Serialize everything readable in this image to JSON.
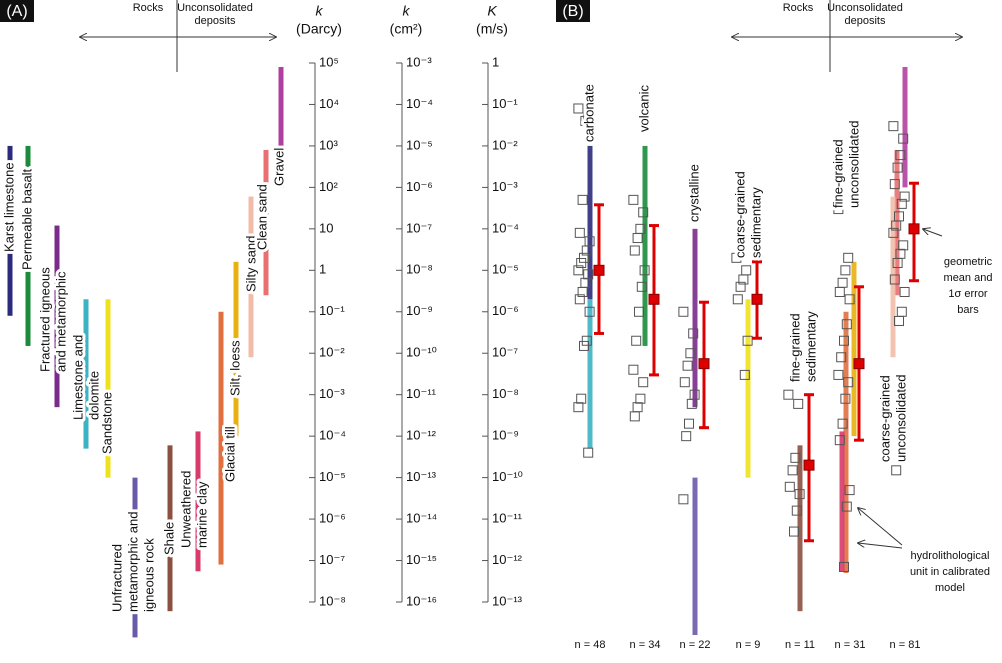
{
  "panel_a": {
    "label": "(A)",
    "header": {
      "left": "Rocks",
      "right": [
        "Unconsolidated",
        "deposits"
      ]
    },
    "axes": [
      {
        "symbol": "k",
        "unit": "(Darcy)",
        "ylim": [
          1e-08,
          100000
        ],
        "yticks": [
          {
            "value": 100000,
            "label": "10⁵"
          },
          {
            "value": 10000,
            "label": "10⁴"
          },
          {
            "value": 1000,
            "label": "10³"
          },
          {
            "value": 100,
            "label": "10²"
          },
          10,
          1,
          {
            "value": 0.1,
            "label": "10⁻¹"
          },
          {
            "value": 0.01,
            "label": "10⁻²"
          },
          {
            "value": 0.001,
            "label": "10⁻³"
          },
          {
            "value": 0.0001,
            "label": "10⁻⁴"
          },
          {
            "value": 1e-05,
            "label": "10⁻⁵"
          },
          {
            "value": 1e-06,
            "label": "10⁻⁶"
          },
          {
            "value": 1e-07,
            "label": "10⁻⁷"
          },
          {
            "value": 1e-08,
            "label": "10⁻⁸"
          }
        ]
      },
      {
        "symbol": "k",
        "unit": "(cm²)",
        "ylim": [
          1e-16,
          0.001
        ],
        "yticks": [
          {
            "value": 0.001,
            "label": "10⁻³"
          },
          {
            "value": 0.0001,
            "label": "10⁻⁴"
          },
          {
            "value": 1e-05,
            "label": "10⁻⁵"
          },
          {
            "value": 1e-06,
            "label": "10⁻⁶"
          },
          {
            "value": 1e-07,
            "label": "10⁻⁷"
          },
          {
            "value": 1e-08,
            "label": "10⁻⁸"
          },
          {
            "value": 1e-09,
            "label": "10⁻⁹"
          },
          {
            "value": 1e-10,
            "label": "10⁻¹⁰"
          },
          {
            "value": 1e-11,
            "label": "10⁻¹¹"
          },
          {
            "value": 1e-12,
            "label": "10⁻¹²"
          },
          {
            "value": 1e-13,
            "label": "10⁻¹³"
          },
          {
            "value": 1e-14,
            "label": "10⁻¹⁴"
          },
          {
            "value": 1e-15,
            "label": "10⁻¹⁵"
          },
          {
            "value": 1e-16,
            "label": "10⁻¹⁶"
          }
        ]
      },
      {
        "symbol": "K",
        "unit": "(m/s)",
        "ylim": [
          1e-13,
          1
        ],
        "yticks": [
          1,
          {
            "value": 0.1,
            "label": "10⁻¹"
          },
          {
            "value": 0.01,
            "label": "10⁻²"
          },
          {
            "value": 0.001,
            "label": "10⁻³"
          },
          {
            "value": 0.0001,
            "label": "10⁻⁴"
          },
          {
            "value": 1e-05,
            "label": "10⁻⁵"
          },
          {
            "value": 1e-06,
            "label": "10⁻⁶"
          },
          {
            "value": 1e-07,
            "label": "10⁻⁷"
          },
          {
            "value": 1e-08,
            "label": "10⁻⁸"
          },
          {
            "value": 1e-09,
            "label": "10⁻⁹"
          },
          {
            "value": 1e-10,
            "label": "10⁻¹⁰"
          },
          {
            "value": 1e-11,
            "label": "10⁻¹¹"
          },
          {
            "value": 1e-12,
            "label": "10⁻¹²"
          },
          {
            "value": 1e-13,
            "label": "10⁻¹³"
          }
        ]
      }
    ],
    "units": [
      {
        "name": [
          "Karst limestone"
        ],
        "color": "#2b2b7c",
        "range": [
          0.08,
          1000
        ]
      },
      {
        "name": [
          "Permeable basalt"
        ],
        "color": "#1b8b3b",
        "range": [
          0.015,
          1000
        ]
      },
      {
        "name": [
          "Fractured igneous",
          "and metamorphic"
        ],
        "color": "#7b2b8b",
        "range": [
          0.0005,
          12
        ]
      },
      {
        "name": [
          "Limestone and",
          "dolomite"
        ],
        "color": "#3cb3c3",
        "range": [
          5e-05,
          0.2
        ]
      },
      {
        "name": [
          "Sandstone"
        ],
        "color": "#eee21c",
        "range": [
          1e-05,
          0.2
        ]
      },
      {
        "name": [
          "Unfractured",
          "metamorphic and",
          "igneous rock"
        ],
        "color": "#6a5aaa",
        "range": [
          1.4e-09,
          1e-05
        ]
      },
      {
        "name": [
          "Shale"
        ],
        "color": "#8b5040",
        "range": [
          6e-09,
          6e-05
        ]
      },
      {
        "name": [
          "Unweathered",
          "marine clay"
        ],
        "color": "#d83a6a",
        "range": [
          5.5e-08,
          0.00013
        ]
      },
      {
        "name": [
          "Glacial till"
        ],
        "color": "#e07040",
        "range": [
          8e-08,
          0.1
        ]
      },
      {
        "name": [
          "Silt, loess"
        ],
        "color": "#e8b010",
        "range": [
          0.0001,
          1.6
        ]
      },
      {
        "name": [
          "Silty sand"
        ],
        "color": "#f2bcaa",
        "range": [
          0.008,
          60
        ]
      },
      {
        "name": [
          "Clean sand"
        ],
        "color": "#e87070",
        "range": [
          0.25,
          800
        ]
      },
      {
        "name": [
          "Gravel"
        ],
        "color": "#b040a0",
        "range": [
          100,
          80000
        ]
      }
    ]
  },
  "panel_b": {
    "label": "(B)",
    "header": {
      "left": "Rocks",
      "right": [
        "Unconsolidated",
        "deposits"
      ]
    },
    "groups": [
      {
        "name": [
          "carbonate"
        ],
        "n_label": "n = 48",
        "bars": [
          {
            "color": "#2b2b7c",
            "range": [
              0.2,
              1000
            ]
          },
          {
            "color": "#3cb3c3",
            "range": [
              5e-05,
              0.2
            ]
          }
        ],
        "points": [
          8000,
          5000,
          4000,
          50,
          8,
          5,
          3,
          2,
          1.5,
          1,
          0.8,
          0.5,
          0.3,
          0.2,
          0.1,
          0.02,
          0.015,
          0.0008,
          0.0005,
          4e-05
        ],
        "mean": 1,
        "error": [
          0.03,
          38
        ]
      },
      {
        "name": [
          "volcanic"
        ],
        "n_label": "n = 34",
        "bars": [
          {
            "color": "#1b8b3b",
            "range": [
              0.015,
              1000
            ]
          }
        ],
        "points": [
          50,
          25,
          10,
          6,
          3,
          1,
          0.4,
          0.1,
          0.02,
          0.004,
          0.002,
          0.0008,
          0.0005,
          0.0003
        ],
        "mean": 0.2,
        "error": [
          0.003,
          12
        ]
      },
      {
        "name": [
          "crystalline"
        ],
        "n_label": "n = 22",
        "bars": [
          {
            "color": "#7b2b8b",
            "range": [
              0.0005,
              10
            ]
          },
          {
            "color": "#6a5aaa",
            "range": [
              1.6e-09,
              1e-05
            ]
          }
        ],
        "points": [
          0.1,
          0.03,
          0.01,
          0.005,
          0.002,
          0.001,
          0.0006,
          0.0002,
          0.0001,
          3e-06
        ],
        "mean": 0.0056,
        "error": [
          0.00016,
          0.17
        ]
      },
      {
        "name": [
          "coarse-grained",
          "sedimentary"
        ],
        "n_label": "n = 9",
        "bars": [
          {
            "color": "#eee21c",
            "range": [
              1e-05,
              0.2
            ]
          }
        ],
        "points": [
          2,
          1,
          0.6,
          0.4,
          0.2,
          0.02,
          0.003
        ],
        "mean": 0.2,
        "error": [
          0.023,
          1.6
        ]
      },
      {
        "name": [
          "fine-grained",
          "sedimentary"
        ],
        "n_label": "n = 11",
        "bars": [
          {
            "color": "#8b5040",
            "range": [
              6e-09,
              6e-05
            ]
          }
        ],
        "points": [
          0.001,
          0.0006,
          3e-05,
          1.5e-05,
          6e-06,
          4e-06,
          1.6e-06,
          5e-07
        ],
        "mean": 2e-05,
        "error": [
          3e-07,
          0.001
        ]
      },
      {
        "name": [
          "fine-grained",
          "unconsolidated"
        ],
        "n_label": "n = 31",
        "bars": [
          {
            "color": "#e07040",
            "range": [
              5e-08,
              0.1
            ]
          },
          {
            "color": "#e8b010",
            "range": [
              0.0001,
              1.6
            ]
          },
          {
            "color": "#d83a6a",
            "range": [
              5.5e-08,
              0.00013
            ]
          }
        ],
        "points": [
          30,
          2,
          1,
          0.5,
          0.3,
          0.2,
          0.05,
          0.02,
          0.008,
          0.003,
          0.002,
          0.0008,
          0.0002,
          8e-05,
          5e-06,
          2e-06,
          7e-08
        ],
        "mean": 0.0056,
        "error": [
          8e-05,
          0.4
        ]
      },
      {
        "name": [
          "coarse-grained",
          "unconsolidated"
        ],
        "n_label": "n = 81",
        "bars": [
          {
            "color": "#b040a0",
            "range": [
              100,
              80000
            ]
          },
          {
            "color": "#e87070",
            "range": [
              0.25,
              800
            ]
          },
          {
            "color": "#f2bcaa",
            "range": [
              0.008,
              60
            ]
          }
        ],
        "points": [
          3000,
          1500,
          600,
          300,
          120,
          60,
          40,
          20,
          12,
          8,
          4,
          2.5,
          1.5,
          0.6,
          0.3,
          0.1,
          0.06,
          1.5e-05
        ],
        "mean": 10,
        "error": [
          0.56,
          126
        ]
      }
    ],
    "annotations": {
      "mean": [
        "geometric",
        "mean and",
        "1σ error",
        "bars"
      ],
      "unit": [
        "hydrolithological",
        "unit in calibrated",
        "model"
      ]
    }
  }
}
